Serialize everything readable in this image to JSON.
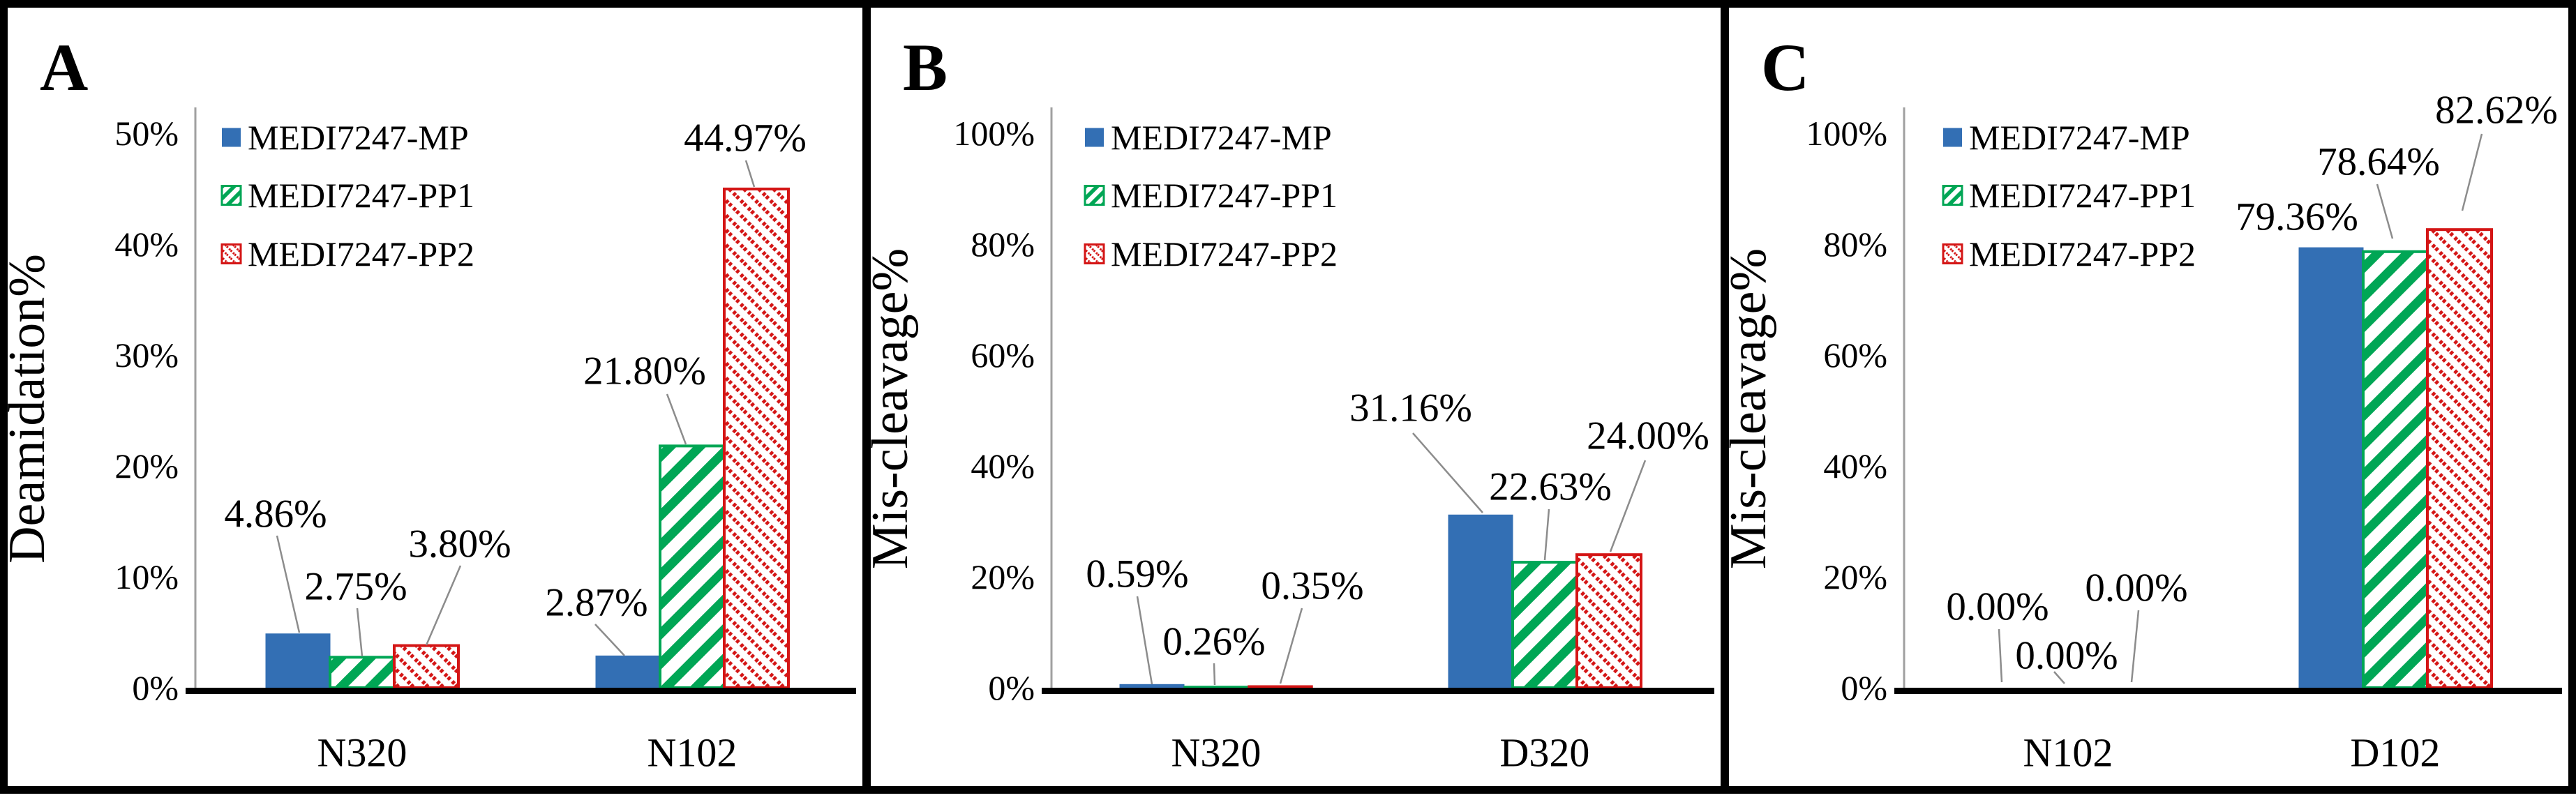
{
  "figure": {
    "letters": [
      "A",
      "B",
      "C"
    ],
    "legend_labels": [
      "MEDI7247-MP",
      "MEDI7247-PP1",
      "MEDI7247-PP2"
    ],
    "colors": {
      "mp_blue": "#336fb4",
      "pp1_green": "#00a655",
      "pp2_red": "#d41515",
      "axis_line": "#a0a0a0",
      "leader_line": "#8c8c8c",
      "frame": "#000000"
    }
  },
  "chart_data": [
    {
      "panel": "A",
      "type": "bar",
      "title": "",
      "xlabel": "",
      "ylabel": "Deamidation%",
      "ylim": [
        0,
        50
      ],
      "yticks": [
        "50%",
        "40%",
        "30%",
        "20%",
        "10%",
        "0%"
      ],
      "categories": [
        "N320",
        "N102"
      ],
      "series": [
        {
          "name": "MEDI7247-MP",
          "values": [
            4.86,
            2.87
          ]
        },
        {
          "name": "MEDI7247-PP1",
          "values": [
            2.75,
            21.8
          ]
        },
        {
          "name": "MEDI7247-PP2",
          "values": [
            3.8,
            44.97
          ]
        }
      ],
      "data_labels": [
        [
          "4.86%",
          "2.87%"
        ],
        [
          "2.75%",
          "21.80%"
        ],
        [
          "3.80%",
          "44.97%"
        ]
      ],
      "legend_position": "upper-left-inside",
      "grid": false
    },
    {
      "panel": "B",
      "type": "bar",
      "title": "",
      "xlabel": "",
      "ylabel": "Mis-cleavage%",
      "ylim": [
        0,
        100
      ],
      "yticks": [
        "100%",
        "80%",
        "60%",
        "40%",
        "20%",
        "0%"
      ],
      "categories": [
        "N320",
        "D320"
      ],
      "series": [
        {
          "name": "MEDI7247-MP",
          "values": [
            0.59,
            31.16
          ]
        },
        {
          "name": "MEDI7247-PP1",
          "values": [
            0.26,
            22.63
          ]
        },
        {
          "name": "MEDI7247-PP2",
          "values": [
            0.35,
            24.0
          ]
        }
      ],
      "data_labels": [
        [
          "0.59%",
          "31.16%"
        ],
        [
          "0.26%",
          "22.63%"
        ],
        [
          "0.35%",
          "24.00%"
        ]
      ],
      "legend_position": "upper-left-inside",
      "grid": false
    },
    {
      "panel": "C",
      "type": "bar",
      "title": "",
      "xlabel": "",
      "ylabel": "Mis-cleavage%",
      "ylim": [
        0,
        100
      ],
      "yticks": [
        "100%",
        "80%",
        "60%",
        "40%",
        "20%",
        "0%"
      ],
      "categories": [
        "N102",
        "D102"
      ],
      "series": [
        {
          "name": "MEDI7247-MP",
          "values": [
            0.0,
            79.36
          ]
        },
        {
          "name": "MEDI7247-PP1",
          "values": [
            0.0,
            78.64
          ]
        },
        {
          "name": "MEDI7247-PP2",
          "values": [
            0.0,
            82.62
          ]
        }
      ],
      "data_labels": [
        [
          "0.00%",
          "79.36%"
        ],
        [
          "0.00%",
          "78.64%"
        ],
        [
          "0.00%",
          "82.62%"
        ]
      ],
      "legend_position": "upper-left-inside",
      "grid": false
    }
  ]
}
